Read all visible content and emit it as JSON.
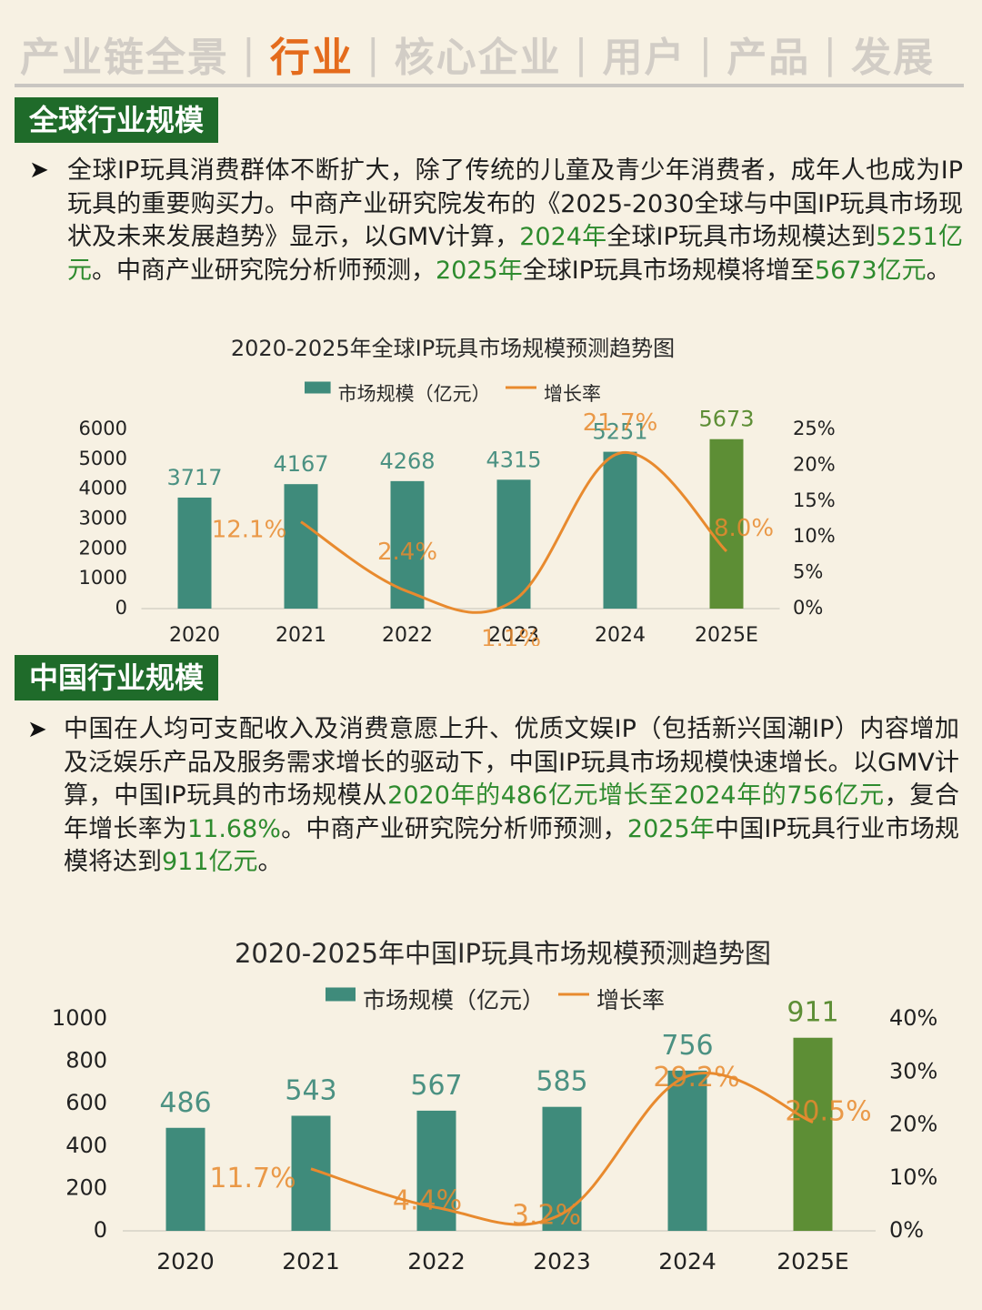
{
  "nav": {
    "items": [
      "产业链全景",
      "行业",
      "核心企业",
      "用户",
      "产品",
      "发展"
    ],
    "active_index": 1,
    "separator": "|"
  },
  "sections": {
    "global": {
      "tag": "全球行业规模",
      "bullet": "➤",
      "paragraph": [
        {
          "t": "全球IP玩具消费群体不断扩大，除了传统的儿童及青少年消费者，成年人也成为IP玩具的重要购买力。中商产业研究院发布的《2025-2030全球与中国IP玩具市场现状及未来发展趋势》显示，以GMV计算，",
          "hl": false
        },
        {
          "t": "2024年",
          "hl": true
        },
        {
          "t": "全球IP玩具市场规模达到",
          "hl": false
        },
        {
          "t": "5251亿元",
          "hl": true
        },
        {
          "t": "。中商产业研究院分析师预测，",
          "hl": false
        },
        {
          "t": "2025年",
          "hl": true
        },
        {
          "t": "全球IP玩具市场规模将增至",
          "hl": false
        },
        {
          "t": "5673亿元",
          "hl": true
        },
        {
          "t": "。",
          "hl": false
        }
      ]
    },
    "china": {
      "tag": "中国行业规模",
      "bullet": "➤",
      "paragraph": [
        {
          "t": "中国在人均可支配收入及消费意愿上升、优质文娱IP（包括新兴国潮IP）内容增加及泛娱乐产品及服务需求增长的驱动下，中国IP玩具市场规模快速增长。以GMV计算，中国IP玩具的市场规模从",
          "hl": false
        },
        {
          "t": "2020年的486亿元增长至2024年的756亿元",
          "hl": true
        },
        {
          "t": "，复合年增长率为",
          "hl": false
        },
        {
          "t": "11.68%",
          "hl": true
        },
        {
          "t": "。中商产业研究院分析师预测，",
          "hl": false
        },
        {
          "t": "2025年",
          "hl": true
        },
        {
          "t": "中国IP玩具行业市场规模将达到",
          "hl": false
        },
        {
          "t": "911亿元",
          "hl": true
        },
        {
          "t": "。",
          "hl": false
        }
      ]
    }
  },
  "colors": {
    "bar": "#3f8b7b",
    "bar_forecast": "#5d8e35",
    "line": "#e88a2e",
    "value_label": "#4b9182",
    "value_label_forecast": "#5d8e35",
    "highlight": "#2e8b2e",
    "tag_bg": "#1f6b2a",
    "nav_active": "#e46b1c"
  },
  "chart_data": [
    {
      "type": "bar",
      "title": "2020-2025年全球IP玩具市场规模预测趋势图",
      "categories": [
        "2020",
        "2021",
        "2022",
        "2023",
        "2024",
        "2025E"
      ],
      "series": [
        {
          "name": "市场规模（亿元）",
          "type": "bar",
          "axis": "left",
          "values": [
            3717,
            4167,
            4268,
            4315,
            5251,
            5673
          ]
        },
        {
          "name": "增长率",
          "type": "line",
          "axis": "right",
          "values": [
            null,
            12.1,
            2.4,
            1.1,
            21.7,
            8.0
          ]
        }
      ],
      "value_labels": [
        "3717",
        "4167",
        "4268",
        "4315",
        "5251",
        "5673"
      ],
      "rate_labels": [
        "",
        "12.1%",
        "2.4%",
        "1.1%",
        "21.7%",
        "8.0%"
      ],
      "y_left": {
        "ticks": [
          "0",
          "1000",
          "2000",
          "3000",
          "4000",
          "5000",
          "6000"
        ],
        "range": [
          0,
          6000
        ]
      },
      "y_right": {
        "ticks": [
          "0%",
          "5%",
          "10%",
          "15%",
          "20%",
          "25%"
        ],
        "range": [
          0,
          25
        ]
      },
      "forecast_index": 5,
      "legend": "top",
      "grid": false
    },
    {
      "type": "bar",
      "title": "2020-2025年中国IP玩具市场规模预测趋势图",
      "categories": [
        "2020",
        "2021",
        "2022",
        "2023",
        "2024",
        "2025E"
      ],
      "series": [
        {
          "name": "市场规模（亿元）",
          "type": "bar",
          "axis": "left",
          "values": [
            486,
            543,
            567,
            585,
            756,
            911
          ]
        },
        {
          "name": "增长率",
          "type": "line",
          "axis": "right",
          "values": [
            null,
            11.7,
            4.4,
            3.2,
            29.2,
            20.5
          ]
        }
      ],
      "value_labels": [
        "486",
        "543",
        "567",
        "585",
        "756",
        "911"
      ],
      "rate_labels": [
        "",
        "11.7%",
        "4.4%",
        "3.2%",
        "29.2%",
        "20.5%"
      ],
      "y_left": {
        "ticks": [
          "0",
          "200",
          "400",
          "600",
          "800",
          "1000"
        ],
        "range": [
          0,
          1000
        ]
      },
      "y_right": {
        "ticks": [
          "0%",
          "10%",
          "20%",
          "30%",
          "40%"
        ],
        "range": [
          0,
          40
        ]
      },
      "forecast_index": 5,
      "legend": "top",
      "grid": false
    }
  ]
}
